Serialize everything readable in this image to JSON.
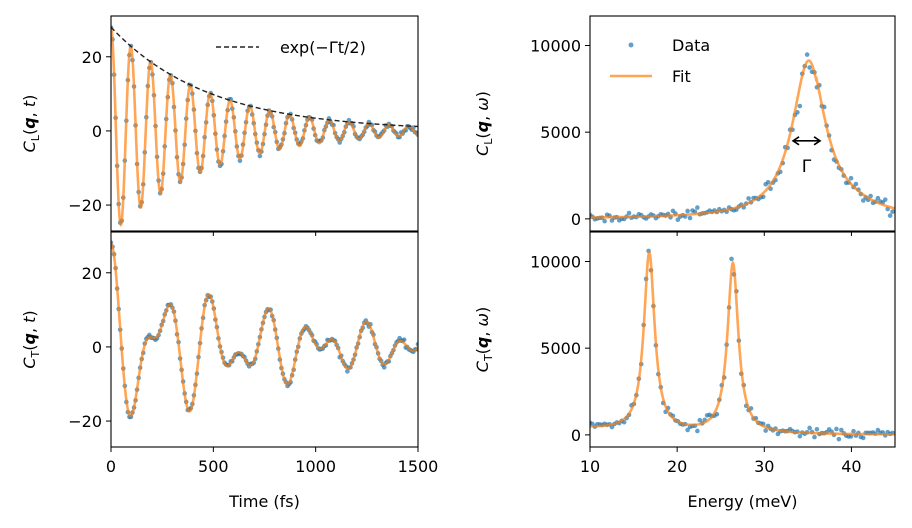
{
  "chart_data": [
    {
      "id": "tl",
      "type": "line",
      "ylabel": "C_L(q, t)",
      "ylabel_parts": {
        "main": "C",
        "sub": "L",
        "arg": "(q, t)"
      },
      "xlabel": "",
      "xlim": [
        0,
        1500
      ],
      "ylim": [
        -27,
        31
      ],
      "xticks": [
        0,
        500,
        1000,
        1500
      ],
      "yticks": [
        -20,
        0,
        20
      ],
      "ytick_labels": [
        "−20",
        "0",
        "20"
      ],
      "show_xtick_labels": false,
      "signal": {
        "amplitude": 28,
        "gamma_fs": 0.0042,
        "period_fs": 97
      },
      "envelope": {
        "label": "exp(−Γt/2)",
        "amplitude": 28,
        "gamma_fs": 0.0042
      },
      "legend": {
        "position": "top-right",
        "entries": [
          {
            "label": "exp(−Γt/2)",
            "style": "dashed",
            "color": "#222222"
          }
        ]
      }
    },
    {
      "id": "bl",
      "type": "line",
      "ylabel": "C_T(q, t)",
      "ylabel_parts": {
        "main": "C",
        "sub": "T",
        "arg": "(q, t)"
      },
      "xlabel": "Time (fs)",
      "xlim": [
        0,
        1500
      ],
      "ylim": [
        -27,
        31
      ],
      "xticks": [
        0,
        500,
        1000,
        1500
      ],
      "xtick_labels": [
        "0",
        "500",
        "1000",
        "1500"
      ],
      "yticks": [
        -20,
        0,
        20
      ],
      "ytick_labels": [
        "−20",
        "0",
        "20"
      ],
      "show_xtick_labels": true,
      "signal": {
        "components": [
          {
            "amplitude": 18,
            "gamma_fs": 0.0028,
            "period_fs": 250
          },
          {
            "amplitude": 10,
            "gamma_fs": 0.0016,
            "period_fs": 156
          }
        ]
      }
    },
    {
      "id": "tr",
      "type": "scatter",
      "ylabel": "C_L(q, ω)",
      "ylabel_parts": {
        "main": "C",
        "sub": "L",
        "arg": "(q, ω)"
      },
      "xlabel": "",
      "xlim": [
        10,
        45
      ],
      "ylim": [
        -700,
        11700
      ],
      "xticks": [
        10,
        20,
        30,
        40
      ],
      "yticks": [
        0,
        5000,
        10000
      ],
      "ytick_labels": [
        "0",
        "5000",
        "10000"
      ],
      "show_xtick_labels": false,
      "peaks": [
        {
          "center_meV": 35.1,
          "height": 9100,
          "hwhm_meV": 2.3
        }
      ],
      "baseline": 0,
      "annotation": {
        "text": "Γ",
        "x_from": 33.3,
        "x_to": 36.4,
        "y": 4500
      },
      "legend": {
        "position": "top-left",
        "entries": [
          {
            "label": "Data",
            "style": "dots",
            "color": "#1f77b4"
          },
          {
            "label": "Fit",
            "style": "line",
            "color": "#ff7f0e"
          }
        ]
      }
    },
    {
      "id": "br",
      "type": "scatter",
      "ylabel": "C_T(q, ω)",
      "ylabel_parts": {
        "main": "C",
        "sub": "T",
        "arg": "(q, ω)"
      },
      "xlabel": "Energy (meV)",
      "xlim": [
        10,
        45
      ],
      "ylim": [
        -700,
        11700
      ],
      "xticks": [
        10,
        20,
        30,
        40
      ],
      "xtick_labels": [
        "10",
        "20",
        "30",
        "40"
      ],
      "yticks": [
        0,
        5000,
        10000
      ],
      "ytick_labels": [
        "0",
        "5000",
        "10000"
      ],
      "show_xtick_labels": true,
      "peaks": [
        {
          "center_meV": 16.8,
          "height": 10300,
          "hwhm_meV": 0.75
        },
        {
          "center_meV": 26.4,
          "height": 9800,
          "hwhm_meV": 0.75
        }
      ],
      "baseline": 0
    }
  ],
  "colors": {
    "data": "#1f77b4",
    "fit": "#ff7f0e",
    "envelope": "#222222",
    "axes": "#000000"
  }
}
